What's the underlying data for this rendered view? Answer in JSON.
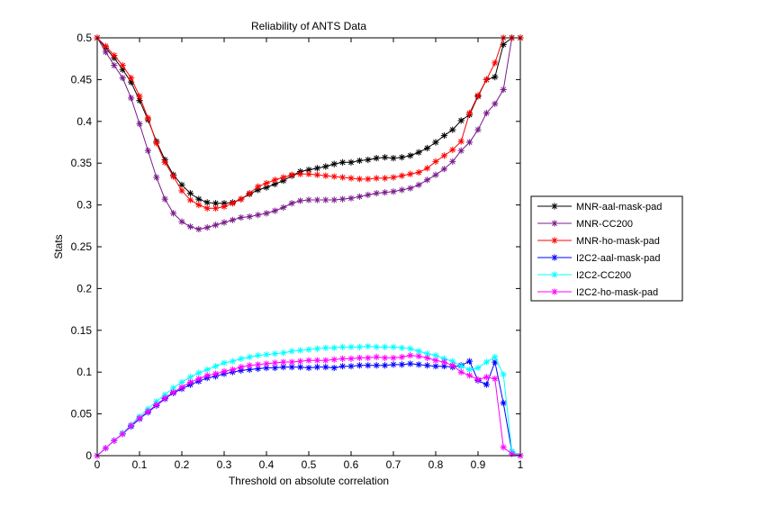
{
  "chart_data": {
    "type": "line",
    "title": "Reliability of ANTS Data",
    "xlabel": "Threshold on absolute correlation",
    "ylabel": "Stats",
    "xlim": [
      0,
      1
    ],
    "ylim": [
      0,
      0.5
    ],
    "xticks": [
      "0",
      "0.1",
      "0.2",
      "0.3",
      "0.4",
      "0.5",
      "0.6",
      "0.7",
      "0.8",
      "0.9",
      "1"
    ],
    "yticks": [
      "0",
      "0.05",
      "0.1",
      "0.15",
      "0.2",
      "0.25",
      "0.3",
      "0.35",
      "0.4",
      "0.45",
      "0.5"
    ],
    "grid": false,
    "legend_position": "right",
    "marker": "asterisk",
    "x": [
      0,
      0.02,
      0.04,
      0.06,
      0.08,
      0.1,
      0.12,
      0.14,
      0.16,
      0.18,
      0.2,
      0.22,
      0.24,
      0.26,
      0.28,
      0.3,
      0.32,
      0.34,
      0.36,
      0.38,
      0.4,
      0.42,
      0.44,
      0.46,
      0.48,
      0.5,
      0.52,
      0.54,
      0.56,
      0.58,
      0.6,
      0.62,
      0.64,
      0.66,
      0.68,
      0.7,
      0.72,
      0.74,
      0.76,
      0.78,
      0.8,
      0.82,
      0.84,
      0.86,
      0.88,
      0.9,
      0.92,
      0.94,
      0.96,
      0.98,
      1
    ],
    "series": [
      {
        "name": "MNR-aal-mask-pad",
        "color": "#000000",
        "values": [
          0.5,
          0.488,
          0.476,
          0.462,
          0.447,
          0.425,
          0.402,
          0.376,
          0.354,
          0.336,
          0.324,
          0.314,
          0.307,
          0.303,
          0.302,
          0.302,
          0.303,
          0.307,
          0.313,
          0.318,
          0.321,
          0.325,
          0.329,
          0.335,
          0.34,
          0.342,
          0.344,
          0.346,
          0.349,
          0.351,
          0.351,
          0.353,
          0.354,
          0.356,
          0.357,
          0.356,
          0.357,
          0.359,
          0.363,
          0.368,
          0.375,
          0.383,
          0.39,
          0.401,
          0.408,
          0.43,
          0.45,
          0.453,
          0.492,
          0.5,
          0.5
        ]
      },
      {
        "name": "MNR-CC200",
        "color": "#7a1c8c",
        "values": [
          0.5,
          0.483,
          0.467,
          0.452,
          0.428,
          0.397,
          0.365,
          0.333,
          0.307,
          0.29,
          0.28,
          0.274,
          0.271,
          0.273,
          0.276,
          0.279,
          0.282,
          0.285,
          0.286,
          0.288,
          0.29,
          0.293,
          0.297,
          0.302,
          0.305,
          0.306,
          0.306,
          0.306,
          0.306,
          0.307,
          0.308,
          0.31,
          0.312,
          0.314,
          0.315,
          0.316,
          0.318,
          0.32,
          0.324,
          0.33,
          0.336,
          0.343,
          0.352,
          0.365,
          0.375,
          0.39,
          0.41,
          0.421,
          0.438,
          0.5,
          0.5
        ]
      },
      {
        "name": "MNR-ho-mask-pad",
        "color": "#ff0000",
        "values": [
          0.5,
          0.49,
          0.479,
          0.467,
          0.452,
          0.43,
          0.404,
          0.374,
          0.351,
          0.334,
          0.317,
          0.306,
          0.3,
          0.296,
          0.296,
          0.298,
          0.302,
          0.307,
          0.314,
          0.322,
          0.326,
          0.33,
          0.333,
          0.336,
          0.337,
          0.337,
          0.336,
          0.335,
          0.334,
          0.333,
          0.332,
          0.331,
          0.331,
          0.332,
          0.332,
          0.333,
          0.335,
          0.337,
          0.339,
          0.344,
          0.352,
          0.359,
          0.366,
          0.376,
          0.41,
          0.431,
          0.45,
          0.47,
          0.5,
          0.5,
          0.5
        ]
      },
      {
        "name": "I2C2-aal-mask-pad",
        "color": "#0000ff",
        "values": [
          0,
          0.009,
          0.018,
          0.026,
          0.035,
          0.044,
          0.052,
          0.06,
          0.068,
          0.075,
          0.08,
          0.085,
          0.089,
          0.093,
          0.095,
          0.098,
          0.1,
          0.102,
          0.103,
          0.104,
          0.105,
          0.105,
          0.106,
          0.106,
          0.106,
          0.105,
          0.106,
          0.106,
          0.105,
          0.107,
          0.107,
          0.108,
          0.108,
          0.108,
          0.108,
          0.109,
          0.109,
          0.11,
          0.109,
          0.108,
          0.107,
          0.107,
          0.106,
          0.108,
          0.113,
          0.09,
          0.085,
          0.112,
          0.063,
          0.005,
          0
        ]
      },
      {
        "name": "I2C2-CC200",
        "color": "#00ffff",
        "values": [
          0,
          0.009,
          0.018,
          0.027,
          0.037,
          0.047,
          0.056,
          0.065,
          0.073,
          0.081,
          0.088,
          0.094,
          0.099,
          0.103,
          0.107,
          0.111,
          0.113,
          0.116,
          0.118,
          0.12,
          0.121,
          0.122,
          0.123,
          0.125,
          0.126,
          0.127,
          0.128,
          0.129,
          0.129,
          0.13,
          0.13,
          0.13,
          0.131,
          0.13,
          0.13,
          0.13,
          0.129,
          0.128,
          0.125,
          0.122,
          0.12,
          0.116,
          0.113,
          0.107,
          0.103,
          0.105,
          0.112,
          0.118,
          0.097,
          0.005,
          0
        ]
      },
      {
        "name": "I2C2-ho-mask-pad",
        "color": "#ff00ff",
        "values": [
          0,
          0.009,
          0.018,
          0.026,
          0.036,
          0.045,
          0.053,
          0.061,
          0.069,
          0.076,
          0.082,
          0.088,
          0.092,
          0.096,
          0.098,
          0.101,
          0.103,
          0.106,
          0.108,
          0.109,
          0.11,
          0.111,
          0.112,
          0.112,
          0.113,
          0.114,
          0.114,
          0.114,
          0.115,
          0.116,
          0.116,
          0.117,
          0.117,
          0.118,
          0.117,
          0.117,
          0.118,
          0.12,
          0.119,
          0.117,
          0.114,
          0.112,
          0.108,
          0.1,
          0.096,
          0.091,
          0.094,
          0.092,
          0.01,
          0.002,
          0
        ]
      }
    ]
  }
}
